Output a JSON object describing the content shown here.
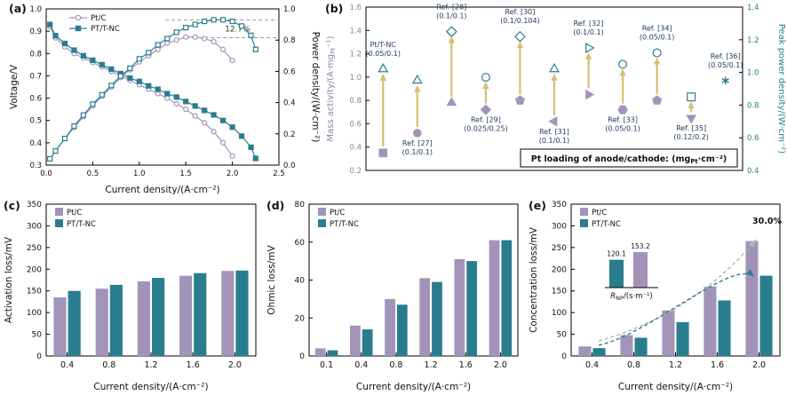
{
  "colors": {
    "ptc": "#a294b8",
    "ptnc": "#2a7d8f",
    "arrow": "#d9bd72",
    "ref_label": "#1c355e",
    "dash": "#9a9a9a",
    "axis": "#000000"
  },
  "chart_data": [
    {
      "id": "a",
      "letter": "(a)",
      "type": "line",
      "xlabel": "Current density/(A·cm⁻²)",
      "ylabel_left": "Voltage/V",
      "ylabel_right": "Power density/(W·cm⁻²)",
      "xlim": [
        0,
        2.5
      ],
      "ylim_left": [
        0.3,
        1.0
      ],
      "ylim_right": [
        0.0,
        1.0
      ],
      "xticks": [
        0,
        0.5,
        1,
        1.5,
        2,
        2.5
      ],
      "yticks_left": [
        0.3,
        0.4,
        0.5,
        0.6,
        0.7,
        0.8,
        0.9,
        1.0
      ],
      "yticks_right": [
        0,
        0.2,
        0.4,
        0.6,
        0.8,
        1.0
      ],
      "legend": [
        "Pt/C",
        "PT/T-NC"
      ],
      "annotation": {
        "text": "12.7%",
        "line_top": 0.93,
        "line_bottom": 0.815,
        "text_x": 1.92,
        "text_y": 0.872
      },
      "series": [
        {
          "name": "Pt/C voltage",
          "axis": "left",
          "marker": "circle-open",
          "x": [
            0.04,
            0.1,
            0.2,
            0.3,
            0.4,
            0.5,
            0.6,
            0.7,
            0.8,
            0.9,
            1,
            1.1,
            1.2,
            1.3,
            1.4,
            1.5,
            1.6,
            1.7,
            1.8,
            1.9,
            2
          ],
          "y": [
            0.92,
            0.87,
            0.83,
            0.8,
            0.78,
            0.76,
            0.74,
            0.72,
            0.7,
            0.68,
            0.66,
            0.64,
            0.62,
            0.6,
            0.575,
            0.55,
            0.52,
            0.49,
            0.45,
            0.4,
            0.34
          ]
        },
        {
          "name": "PT/T-NC voltage",
          "axis": "left",
          "marker": "square",
          "x": [
            0.04,
            0.1,
            0.2,
            0.3,
            0.4,
            0.5,
            0.6,
            0.7,
            0.8,
            0.9,
            1,
            1.1,
            1.2,
            1.3,
            1.4,
            1.5,
            1.6,
            1.7,
            1.8,
            1.9,
            2,
            2.1,
            2.2,
            2.25
          ],
          "y": [
            0.93,
            0.88,
            0.845,
            0.815,
            0.79,
            0.77,
            0.75,
            0.73,
            0.71,
            0.69,
            0.675,
            0.655,
            0.64,
            0.62,
            0.605,
            0.585,
            0.565,
            0.545,
            0.525,
            0.5,
            0.47,
            0.43,
            0.38,
            0.33
          ]
        },
        {
          "name": "Pt/C power",
          "axis": "right",
          "marker": "circle-open",
          "x": [
            0.04,
            0.1,
            0.2,
            0.3,
            0.4,
            0.5,
            0.6,
            0.7,
            0.8,
            0.9,
            1,
            1.1,
            1.2,
            1.3,
            1.4,
            1.5,
            1.6,
            1.7,
            1.8,
            1.9,
            2
          ],
          "y": [
            0.04,
            0.09,
            0.17,
            0.24,
            0.31,
            0.38,
            0.44,
            0.5,
            0.56,
            0.61,
            0.66,
            0.7,
            0.74,
            0.78,
            0.8,
            0.82,
            0.82,
            0.81,
            0.79,
            0.74,
            0.67
          ]
        },
        {
          "name": "PT/T-NC power",
          "axis": "right",
          "marker": "square-open",
          "x": [
            0.04,
            0.1,
            0.2,
            0.3,
            0.4,
            0.5,
            0.6,
            0.7,
            0.8,
            0.9,
            1,
            1.1,
            1.2,
            1.3,
            1.4,
            1.5,
            1.6,
            1.7,
            1.8,
            1.9,
            2,
            2.1,
            2.2,
            2.25
          ],
          "y": [
            0.04,
            0.09,
            0.17,
            0.25,
            0.32,
            0.39,
            0.45,
            0.51,
            0.57,
            0.62,
            0.68,
            0.72,
            0.77,
            0.81,
            0.85,
            0.88,
            0.9,
            0.92,
            0.93,
            0.93,
            0.92,
            0.89,
            0.83,
            0.74
          ]
        }
      ]
    },
    {
      "id": "b",
      "letter": "(b)",
      "type": "scatter",
      "ylabel_left_parts": {
        "pre": "Mass activity/(A·mg",
        "sub": "Pt",
        "post": "⁻¹)"
      },
      "ylabel_right": "Peak power density/(W·cm⁻²)",
      "ylim_left": [
        0.2,
        1.6
      ],
      "ylim_right": [
        0.4,
        1.4
      ],
      "yticks_left": [
        0.2,
        0.4,
        0.6,
        0.8,
        1.0,
        1.2,
        1.4,
        1.6
      ],
      "yticks_right": [
        0.4,
        0.6,
        0.8,
        1.0,
        1.2,
        1.4
      ],
      "legend_box_parts": {
        "pre": "Pt loading of anode/cathode: (mg",
        "sub": "Pt",
        "post": "·cm⁻²)"
      },
      "entries": [
        {
          "label": [
            "Pt/T-NC",
            "(0.05/0.1)"
          ],
          "label_pos": "above",
          "ma": 0.35,
          "ma_marker": "square",
          "pp": 1.02,
          "pp_marker": "tri-up-open"
        },
        {
          "label": [
            "Ref. [27]",
            "(0.1/0.1)"
          ],
          "label_pos": "below",
          "ma": 0.52,
          "ma_marker": "circle",
          "pp": 0.95,
          "pp_marker": "tri-up-open"
        },
        {
          "label": [
            "Ref. [28]",
            "(0.1/0.1)"
          ],
          "label_pos": "above",
          "ma": 0.78,
          "ma_marker": "tri-up",
          "pp": 1.25,
          "pp_marker": "diamond-open"
        },
        {
          "label": [
            "Ref. [29]",
            "(0.025/0.25)"
          ],
          "label_pos": "below",
          "ma": 0.72,
          "ma_marker": "diamond",
          "pp": 0.97,
          "pp_marker": "circle-open"
        },
        {
          "label": [
            "Ref. [30]",
            "(0.1/0.104)"
          ],
          "label_pos": "above",
          "ma": 0.8,
          "ma_marker": "pentagon",
          "pp": 1.22,
          "pp_marker": "diamond-open"
        },
        {
          "label": [
            "Ref. [31]",
            "(0.1/0.1)"
          ],
          "label_pos": "below",
          "ma": 0.62,
          "ma_marker": "tri-left",
          "pp": 1.02,
          "pp_marker": "tri-up-open"
        },
        {
          "label": [
            "Ref. [32]",
            "(0.1/0.1)"
          ],
          "label_pos": "above",
          "ma": 0.85,
          "ma_marker": "tri-right",
          "pp": 1.15,
          "pp_marker": "tri-right-open"
        },
        {
          "label": [
            "Ref. [33]",
            "(0.05/0.1)"
          ],
          "label_pos": "below",
          "ma": 0.72,
          "ma_marker": "hexagon",
          "pp": 1.05,
          "pp_marker": "circle-open"
        },
        {
          "label": [
            "Ref. [34]",
            "(0.05/0.1)"
          ],
          "label_pos": "above",
          "ma": 0.8,
          "ma_marker": "pentagon",
          "pp": 1.12,
          "pp_marker": "circle-open"
        },
        {
          "label": [
            "Ref. [35]",
            "(0.12/0.2)"
          ],
          "label_pos": "below",
          "ma": 0.65,
          "ma_marker": "tri-down",
          "pp": 0.85,
          "pp_marker": "square-open"
        },
        {
          "label": [
            "Ref. [36]",
            "(0.05/0.1)"
          ],
          "label_pos": "above",
          "ma": null,
          "pp": 0.95,
          "pp_marker": "asterisk"
        }
      ]
    },
    {
      "id": "c",
      "letter": "(c)",
      "type": "bar",
      "xlabel": "Current density/(A·cm⁻²)",
      "ylabel": "Activation loss/mV",
      "categories": [
        "0.4",
        "0.8",
        "1.2",
        "1.6",
        "2.0"
      ],
      "ylim": [
        0,
        350
      ],
      "yticks": [
        0,
        50,
        100,
        150,
        200,
        250,
        300,
        350
      ],
      "series": [
        {
          "name": "Pt/C",
          "values": [
            135,
            155,
            172,
            185,
            196
          ]
        },
        {
          "name": "PT/T-NC",
          "values": [
            150,
            164,
            180,
            191,
            197
          ]
        }
      ]
    },
    {
      "id": "d",
      "letter": "(d)",
      "type": "bar",
      "xlabel": "Current density/(A·cm⁻²)",
      "ylabel": "Ohmic loss/mV",
      "categories": [
        "0.1",
        "0.4",
        "0.8",
        "1.2",
        "1.6",
        "2.0"
      ],
      "ylim": [
        0,
        80
      ],
      "yticks": [
        0,
        20,
        40,
        60,
        80
      ],
      "series": [
        {
          "name": "Pt/C",
          "values": [
            4,
            16,
            30,
            41,
            51,
            61
          ]
        },
        {
          "name": "PT/T-NC",
          "values": [
            3,
            14,
            27,
            39,
            50,
            61
          ]
        }
      ]
    },
    {
      "id": "e",
      "letter": "(e)",
      "type": "bar",
      "xlabel": "Current density/(A·cm⁻²)",
      "ylabel": "Concentration loss/mV",
      "categories": [
        "0.4",
        "0.8",
        "1.2",
        "1.6",
        "2.0"
      ],
      "ylim": [
        0,
        350
      ],
      "yticks": [
        0,
        50,
        100,
        150,
        200,
        250,
        300,
        350
      ],
      "series": [
        {
          "name": "Pt/C",
          "values": [
            22,
            48,
            105,
            160,
            265
          ]
        },
        {
          "name": "PT/T-NC",
          "values": [
            18,
            42,
            78,
            128,
            185
          ]
        }
      ],
      "annotation": "30.0%",
      "inset": {
        "label_parts": {
          "pre": "R",
          "sub": "NP",
          "post": "/(s·m⁻¹)"
        },
        "bars": [
          {
            "name": "PT/T-NC",
            "value": 120.1
          },
          {
            "name": "Pt/C",
            "value": 153.2
          }
        ]
      }
    }
  ]
}
